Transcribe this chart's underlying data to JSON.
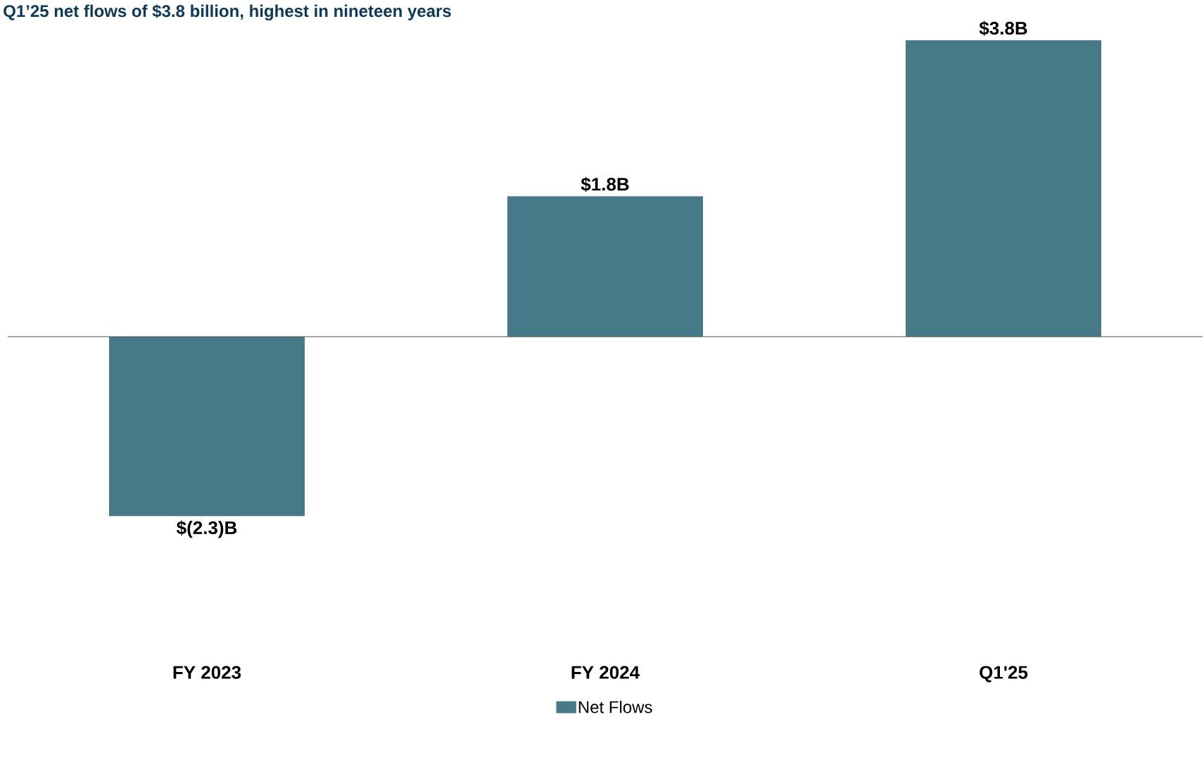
{
  "chart_data": {
    "type": "bar",
    "title": "Q1’25 net flows of $3.8 billion, highest in nineteen years",
    "categories": [
      "FY 2023",
      "FY 2024",
      "Q1'25"
    ],
    "series": [
      {
        "name": "Net Flows",
        "color": "#467a88",
        "values": [
          -2.3,
          1.8,
          3.8
        ],
        "value_labels": [
          "$(2.3)B",
          "$1.8B",
          "$3.8B"
        ]
      }
    ],
    "legend": "bottom"
  }
}
